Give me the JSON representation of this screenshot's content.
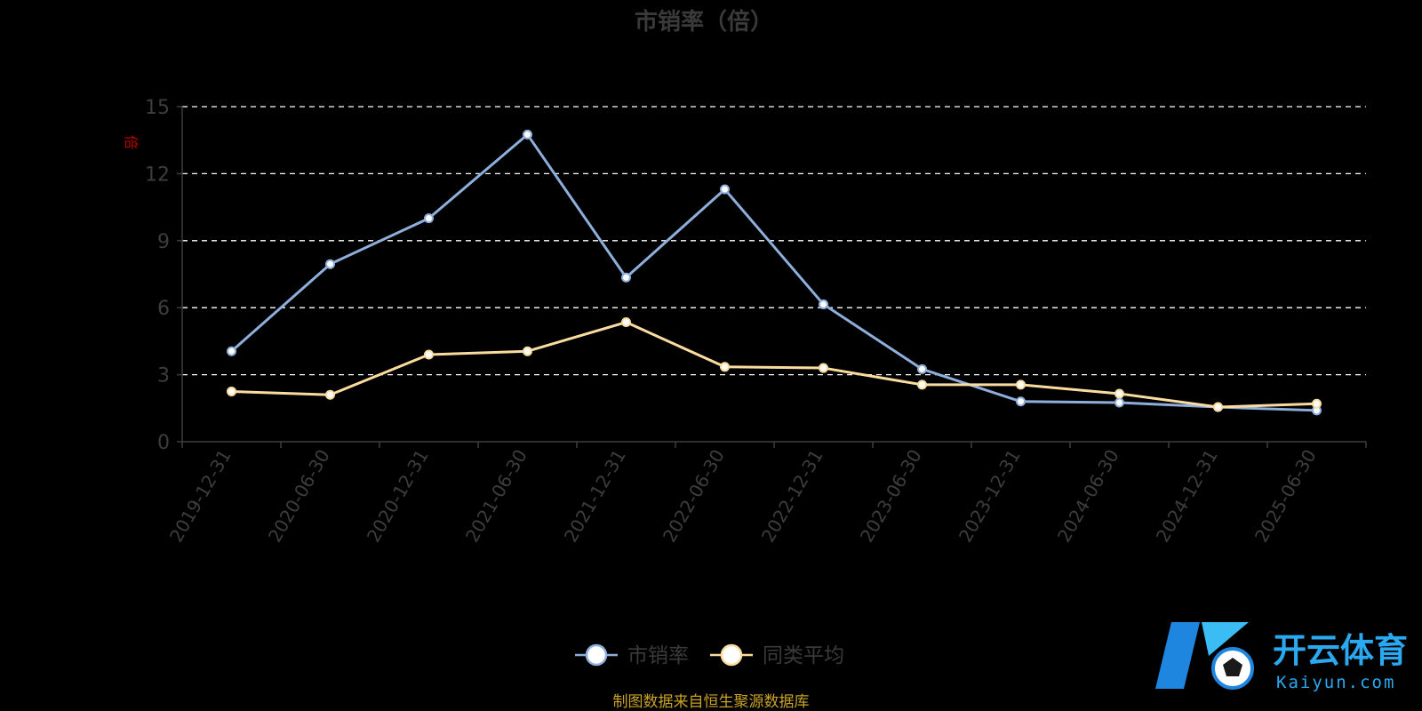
{
  "chart_data": {
    "type": "line",
    "title": "市销率（倍）",
    "ylabel": "倍",
    "ylim": [
      0,
      15
    ],
    "yticks": [
      0,
      3,
      6,
      9,
      12,
      15
    ],
    "grid": true,
    "legend_position": "bottom",
    "categories": [
      "2019-12-31",
      "2020-06-30",
      "2020-12-31",
      "2021-06-30",
      "2021-12-31",
      "2022-06-30",
      "2022-12-31",
      "2023-06-30",
      "2023-12-31",
      "2024-06-30",
      "2024-12-31",
      "2025-06-30"
    ],
    "series": [
      {
        "name": "市销率",
        "color": "#8eaedc",
        "values": [
          4.05,
          7.95,
          10.0,
          13.75,
          7.35,
          11.3,
          6.15,
          3.25,
          1.8,
          1.75,
          1.55,
          1.4
        ]
      },
      {
        "name": "同类平均",
        "color": "#fbdca0",
        "values": [
          2.25,
          2.1,
          3.9,
          4.05,
          5.35,
          3.35,
          3.3,
          2.55,
          2.55,
          2.15,
          1.55,
          1.7
        ]
      }
    ]
  },
  "source_note": "制图数据来自恒生聚源数据库",
  "watermark": {
    "brand_cn": "开云体育",
    "brand_en": "Kaiyun.com"
  }
}
